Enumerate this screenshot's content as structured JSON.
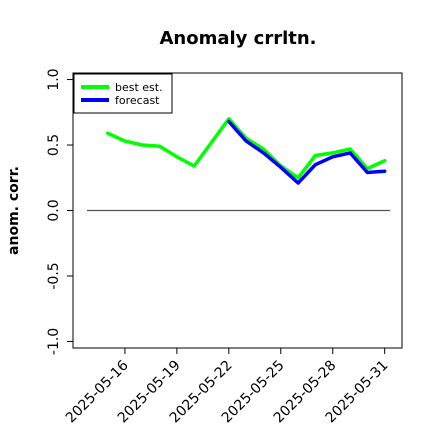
{
  "chart_data": {
    "type": "line",
    "title": "Anomaly crrltn.",
    "xlabel": "",
    "ylabel": "anom. corr.",
    "ylim": [
      -1.05,
      1.05
    ],
    "yticks": [
      -1.0,
      -0.5,
      0.0,
      0.5,
      1.0
    ],
    "ytick_labels": [
      "-1.0",
      "-0.5",
      "0.0",
      "0.5",
      "1.0"
    ],
    "xlim": [
      "2025-05-13",
      "2025-06-01"
    ],
    "xtick_labels": [
      "2025-05-16",
      "2025-05-19",
      "2025-05-22",
      "2025-05-25",
      "2025-05-28",
      "2025-05-31"
    ],
    "highlighted_xtick": "2025-05-22",
    "highlight_color": "#228b22",
    "reference_line": {
      "y": 0.0,
      "color": "#555555"
    },
    "legend": {
      "position": "top-left"
    },
    "grid": false,
    "series": [
      {
        "name": "best est.",
        "color": "#00ff00",
        "x": [
          "2025-05-15",
          "2025-05-16",
          "2025-05-17",
          "2025-05-18",
          "2025-05-19",
          "2025-05-20",
          "2025-05-22",
          "2025-05-23",
          "2025-05-24",
          "2025-05-25",
          "2025-05-26",
          "2025-05-27",
          "2025-05-28",
          "2025-05-29",
          "2025-05-30",
          "2025-05-31"
        ],
        "values": [
          0.59,
          0.53,
          0.5,
          0.49,
          0.41,
          0.34,
          0.7,
          0.55,
          0.47,
          0.34,
          0.25,
          0.42,
          0.44,
          0.47,
          0.32,
          0.38
        ]
      },
      {
        "name": "forecast",
        "color": "#0000ff",
        "x": [
          "2025-05-22",
          "2025-05-23",
          "2025-05-24",
          "2025-05-25",
          "2025-05-26",
          "2025-05-27",
          "2025-05-28",
          "2025-05-29",
          "2025-05-30",
          "2025-05-31"
        ],
        "values": [
          0.68,
          0.53,
          0.44,
          0.33,
          0.21,
          0.35,
          0.41,
          0.44,
          0.29,
          0.3
        ]
      }
    ]
  }
}
